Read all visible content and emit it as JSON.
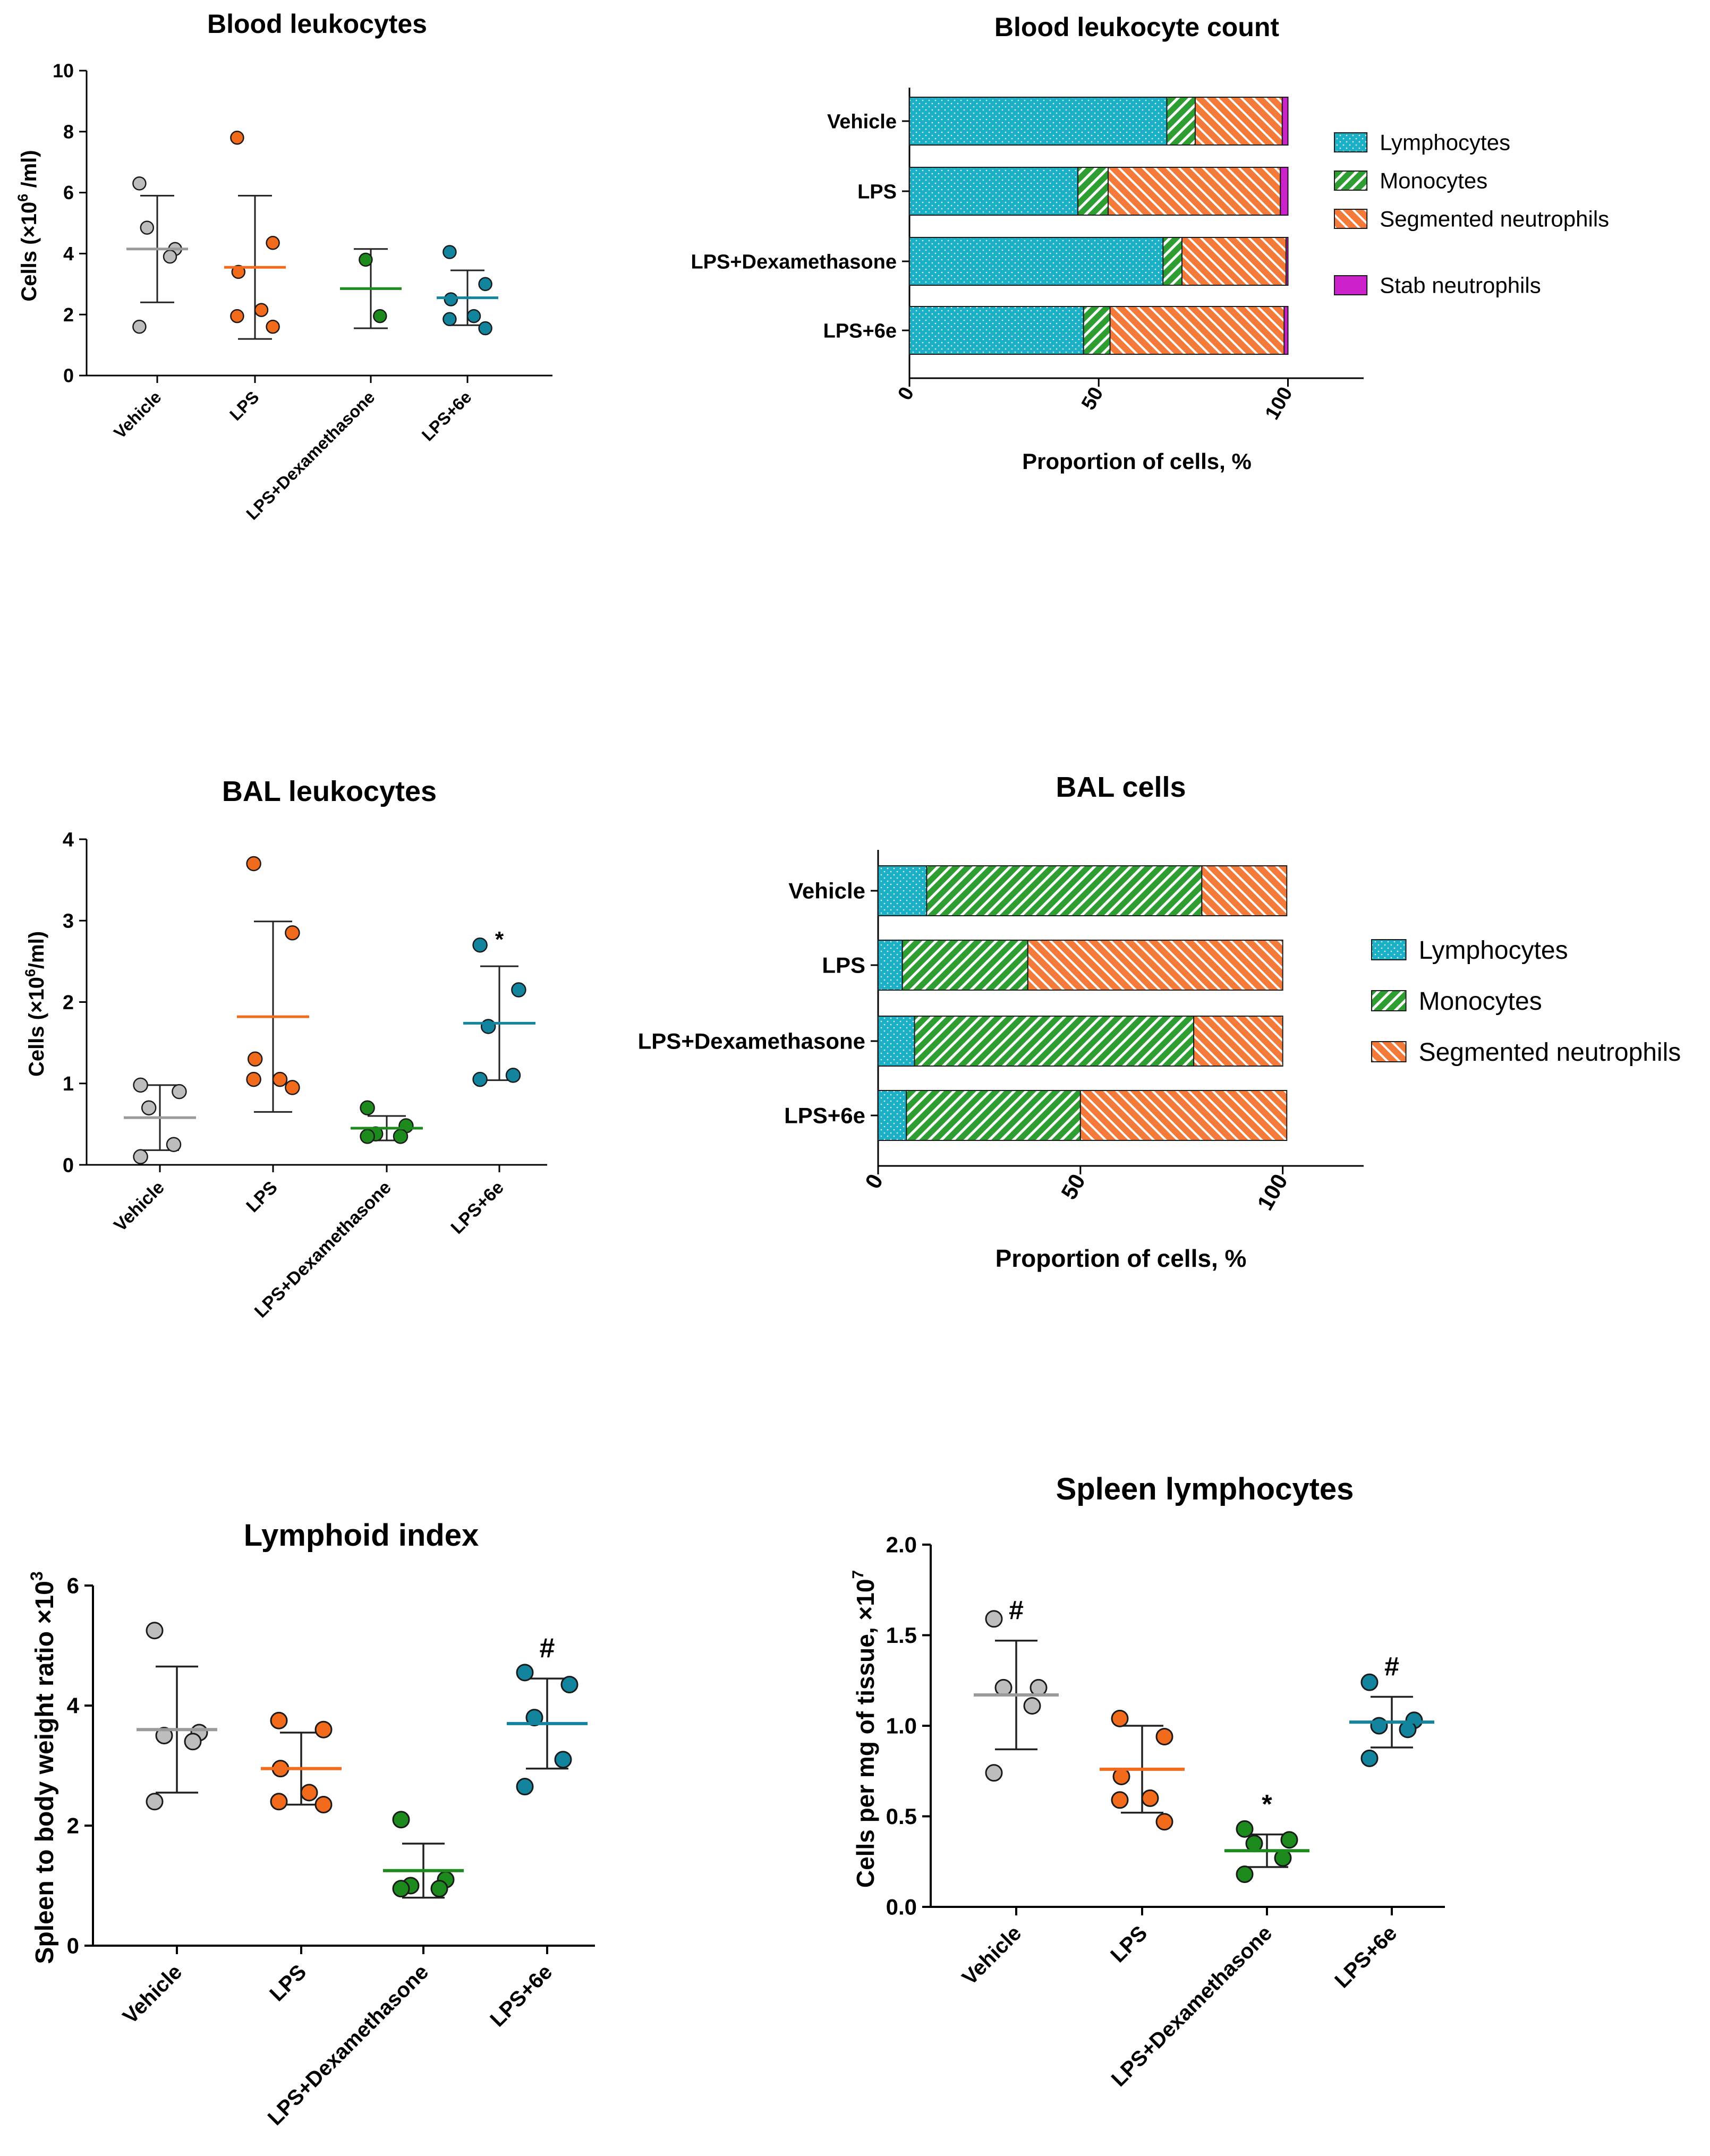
{
  "colors": {
    "Vehicle": "#bdbdbd",
    "LPS": "#f26a1b",
    "LPS+Dexamethasone": "#1c8a1c",
    "LPS+6e": "#13849e",
    "Lymphocytes": "#1cb0c6",
    "Monocytes": "#2e9e33",
    "Segmented neutrophils": "#f47a3a",
    "Stab neutrophils": "#cc22cc"
  },
  "chart_data": [
    {
      "id": "blood-leukocytes",
      "type": "scatter",
      "title": "Blood leukocytes",
      "ylabel": "Cells (×10^6 /ml)",
      "ylabel_parts": {
        "pre": "Cells (",
        "x": "×",
        "base": "10",
        "exp": "6",
        "post": " /ml)"
      },
      "ylim": [
        0,
        10
      ],
      "yticks": [
        "0",
        "2",
        "4",
        "6",
        "8",
        "10"
      ],
      "categories": [
        "Vehicle",
        "LPS",
        "LPS+Dexamethasone",
        "LPS+6e"
      ],
      "points": [
        [
          6.3,
          4.15,
          4.85,
          3.9,
          1.6
        ],
        [
          7.8,
          4.35,
          3.4,
          2.15,
          1.95,
          1.6
        ],
        [
          3.8,
          1.95
        ],
        [
          4.05,
          3.0,
          2.5,
          1.95,
          1.85,
          1.55
        ]
      ],
      "means": [
        4.15,
        3.55,
        2.85,
        2.55
      ],
      "sd": [
        1.75,
        2.35,
        1.3,
        0.9
      ],
      "annotations": [
        "",
        "",
        "",
        ""
      ]
    },
    {
      "id": "blood-leukocyte-count",
      "type": "bar",
      "stacked": true,
      "orientation": "horizontal",
      "title": "Blood leukocyte count",
      "xlabel": "Proportion of cells, %",
      "xlim": [
        0,
        120
      ],
      "xticks": [
        "0",
        "50",
        "100"
      ],
      "categories": [
        "Vehicle",
        "LPS",
        "LPS+Dexamethasone",
        "LPS+6e"
      ],
      "series": [
        {
          "name": "Lymphocytes",
          "values": [
            68,
            44.5,
            67,
            46
          ]
        },
        {
          "name": "Monocytes",
          "values": [
            7.5,
            8,
            5,
            7
          ]
        },
        {
          "name": "Segmented neutrophils",
          "values": [
            23,
            45.5,
            27.5,
            46
          ]
        },
        {
          "name": "Stab neutrophils",
          "values": [
            1.5,
            2,
            0.5,
            1
          ]
        }
      ],
      "legend": [
        "Lymphocytes",
        "Monocytes",
        "Segmented neutrophils",
        "Stab neutrophils"
      ],
      "legend_position": "right"
    },
    {
      "id": "bal-leukocytes",
      "type": "scatter",
      "title": "BAL leukocytes",
      "ylabel": "Cells (×10^6/ml)",
      "ylabel_parts": {
        "pre": "Cells (",
        "x": "×",
        "base": "10",
        "exp": "6",
        "post": "/ml)"
      },
      "ylim": [
        0,
        4
      ],
      "yticks": [
        "0",
        "1",
        "2",
        "3",
        "4"
      ],
      "categories": [
        "Vehicle",
        "LPS",
        "LPS+Dexamethasone",
        "LPS+6e"
      ],
      "points": [
        [
          0.98,
          0.9,
          0.7,
          0.25,
          0.1
        ],
        [
          3.7,
          2.85,
          1.3,
          1.05,
          1.05,
          0.95
        ],
        [
          0.7,
          0.48,
          0.38,
          0.35,
          0.35
        ],
        [
          2.7,
          2.15,
          1.7,
          1.1,
          1.05
        ]
      ],
      "means": [
        0.58,
        1.82,
        0.45,
        1.74
      ],
      "sd": [
        0.4,
        1.17,
        0.15,
        0.7
      ],
      "annotations": [
        "",
        "",
        "",
        "*"
      ]
    },
    {
      "id": "bal-cells",
      "type": "bar",
      "stacked": true,
      "orientation": "horizontal",
      "title": "BAL cells",
      "xlabel": "Proportion of cells, %",
      "xlim": [
        0,
        120
      ],
      "xticks": [
        "0",
        "50",
        "100"
      ],
      "categories": [
        "Vehicle",
        "LPS",
        "LPS+Dexamethasone",
        "LPS+6e"
      ],
      "series": [
        {
          "name": "Lymphocytes",
          "values": [
            12,
            6,
            9,
            7
          ]
        },
        {
          "name": "Monocytes",
          "values": [
            68,
            31,
            69,
            43
          ]
        },
        {
          "name": "Segmented neutrophils",
          "values": [
            21,
            63,
            22,
            51
          ]
        }
      ],
      "legend": [
        "Lymphocytes",
        "Monocytes",
        "Segmented neutrophils"
      ],
      "legend_position": "right"
    },
    {
      "id": "lymphoid-index",
      "type": "scatter",
      "title": "Lymphoid index",
      "ylabel": "Spleen to body weight ratio ×10^3",
      "ylabel_parts": {
        "pre": "Spleen to body weight ratio ",
        "x": "×",
        "base": "10",
        "exp": "3",
        "post": ""
      },
      "ylim": [
        0,
        6
      ],
      "yticks": [
        "0",
        "2",
        "4",
        "6"
      ],
      "categories": [
        "Vehicle",
        "LPS",
        "LPS+Dexamethasone",
        "LPS+6e"
      ],
      "points": [
        [
          5.25,
          3.55,
          3.5,
          3.4,
          2.4
        ],
        [
          3.75,
          3.6,
          2.95,
          2.55,
          2.4,
          2.35
        ],
        [
          2.1,
          1.1,
          1.0,
          0.95,
          0.95
        ],
        [
          4.55,
          4.35,
          3.8,
          3.1,
          2.65
        ]
      ],
      "means": [
        3.6,
        2.95,
        1.25,
        3.7
      ],
      "sd": [
        1.05,
        0.6,
        0.45,
        0.75
      ],
      "annotations": [
        "",
        "",
        "",
        "#"
      ]
    },
    {
      "id": "spleen-lymphocytes",
      "type": "scatter",
      "title": "Spleen lymphocytes",
      "ylabel": "Cells per mg of tissue, ×10^7",
      "ylabel_parts": {
        "pre": "Cells per mg of tissue, ",
        "x": "×",
        "base": "10",
        "exp": "7",
        "post": ""
      },
      "ylim": [
        0,
        2.0
      ],
      "yticks": [
        "0.0",
        "0.5",
        "1.0",
        "1.5",
        "2.0"
      ],
      "categories": [
        "Vehicle",
        "LPS",
        "LPS+Dexamethasone",
        "LPS+6e"
      ],
      "points": [
        [
          1.59,
          1.21,
          1.21,
          1.11,
          0.74
        ],
        [
          1.04,
          0.94,
          0.72,
          0.6,
          0.59,
          0.47
        ],
        [
          0.43,
          0.37,
          0.35,
          0.27,
          0.18
        ],
        [
          1.24,
          1.03,
          1.0,
          0.98,
          0.82
        ]
      ],
      "means": [
        1.17,
        0.76,
        0.31,
        1.02
      ],
      "sd": [
        0.3,
        0.24,
        0.09,
        0.14
      ],
      "annotations": [
        "#",
        "",
        "*",
        "#"
      ]
    }
  ]
}
